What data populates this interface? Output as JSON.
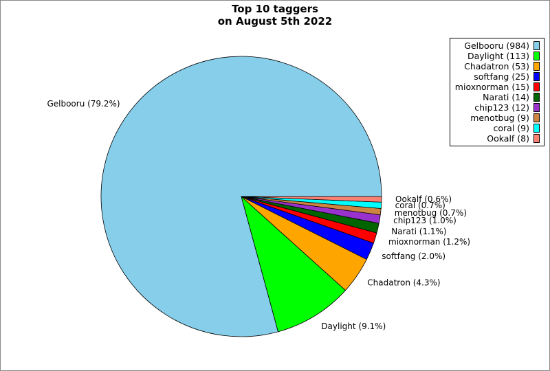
{
  "title_lines": [
    "Top 10 taggers",
    "on August 5th 2022"
  ],
  "chart_data": {
    "type": "pie",
    "title": "Top 10 taggers on August 5th 2022",
    "slices": [
      {
        "name": "Gelbooru",
        "count": 984,
        "percent_label": "79.2%",
        "color": "#87ceeb"
      },
      {
        "name": "Daylight",
        "count": 113,
        "percent_label": "9.1%",
        "color": "#00ff00"
      },
      {
        "name": "Chadatron",
        "count": 53,
        "percent_label": "4.3%",
        "color": "#ffa500"
      },
      {
        "name": "softfang",
        "count": 25,
        "percent_label": "2.0%",
        "color": "#0000ff"
      },
      {
        "name": "mioxnorman",
        "count": 15,
        "percent_label": "1.2%",
        "color": "#ff0000"
      },
      {
        "name": "Narati",
        "count": 14,
        "percent_label": "1.1%",
        "color": "#006400"
      },
      {
        "name": "chip123",
        "count": 12,
        "percent_label": "1.0%",
        "color": "#9932cc"
      },
      {
        "name": "menotbug",
        "count": 9,
        "percent_label": "0.7%",
        "color": "#cd853f"
      },
      {
        "name": "coral",
        "count": 9,
        "percent_label": "0.7%",
        "color": "#00ffff"
      },
      {
        "name": "Ookalf",
        "count": 8,
        "percent_label": "0.6%",
        "color": "#fa8072"
      }
    ],
    "legend_position": "top-right",
    "slice_order": "counterclockwise from the 3 o'clock direction"
  }
}
